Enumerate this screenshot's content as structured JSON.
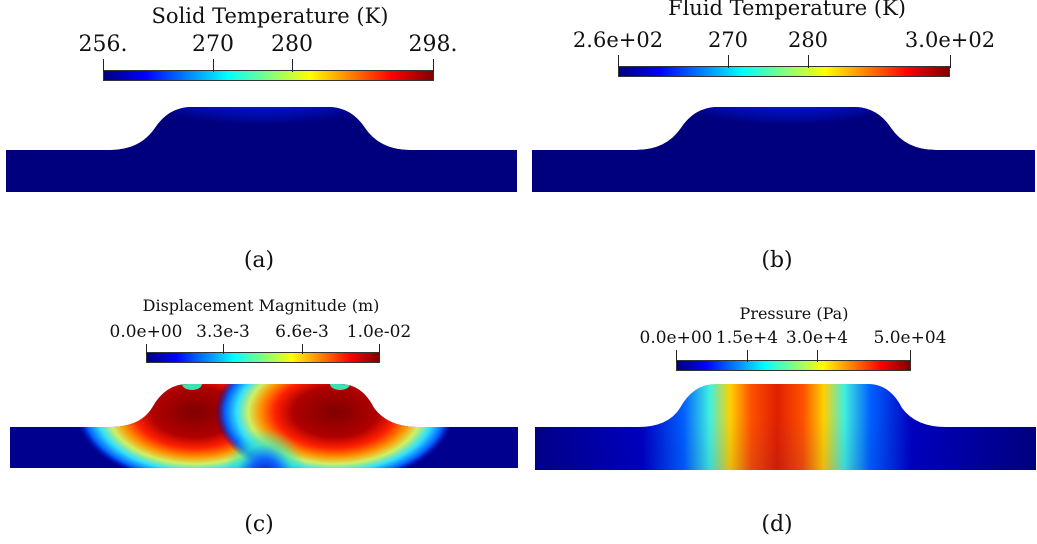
{
  "colormap": [
    "#00007f",
    "#0000ff",
    "#0080ff",
    "#00ffff",
    "#80ff80",
    "#ffff00",
    "#ff8000",
    "#ff0000",
    "#7f0000"
  ],
  "panels": [
    {
      "title": "Solid Temperature (K)",
      "ticks": [
        {
          "label": "256.",
          "frac": 0.0
        },
        {
          "label": "270",
          "frac": 0.333
        },
        {
          "label": "280",
          "frac": 0.571
        },
        {
          "label": "298.",
          "frac": 1.0
        }
      ],
      "field": "temperature",
      "caption": "(a)"
    },
    {
      "title": "Fluid Temperature (K)",
      "ticks": [
        {
          "label": "2.6e+02",
          "frac": 0.0
        },
        {
          "label": "270",
          "frac": 0.333
        },
        {
          "label": "280",
          "frac": 0.571
        },
        {
          "label": "3.0e+02",
          "frac": 1.0
        }
      ],
      "field": "temperature",
      "caption": "(b)"
    },
    {
      "title": "Displacement Magnitude (m)",
      "ticks": [
        {
          "label": "0.0e+00",
          "frac": 0.0
        },
        {
          "label": "3.3e-3",
          "frac": 0.33
        },
        {
          "label": "6.6e-3",
          "frac": 0.66
        },
        {
          "label": "1.0e-02",
          "frac": 1.0
        }
      ],
      "field": "displacement",
      "caption": "(c)"
    },
    {
      "title": "Pressure (Pa)",
      "ticks": [
        {
          "label": "0.0e+00",
          "frac": 0.0
        },
        {
          "label": "1.5e+4",
          "frac": 0.3
        },
        {
          "label": "3.0e+4",
          "frac": 0.6
        },
        {
          "label": "5.0e+04",
          "frac": 1.0
        }
      ],
      "field": "pressure",
      "caption": "(d)"
    }
  ]
}
